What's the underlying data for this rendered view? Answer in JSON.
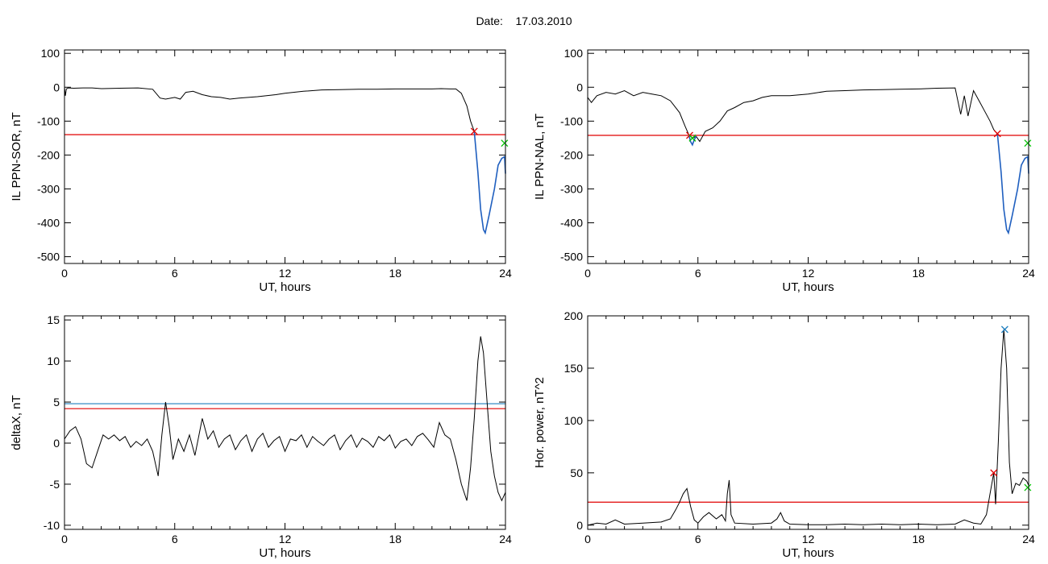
{
  "header": {
    "date_label": "Date:",
    "date_value": "17.03.2010"
  },
  "chart_data": [
    {
      "type": "line",
      "ylabel": "IL PPN-SOR, nT",
      "xlabel": "UT, hours",
      "xlim": [
        0,
        24
      ],
      "ylim": [
        -520,
        110
      ],
      "xticks": [
        0,
        6,
        12,
        18,
        24
      ],
      "yticks": [
        100,
        0,
        -100,
        -200,
        -300,
        -400,
        -500
      ],
      "series": [
        {
          "color": "#000000",
          "x": [
            0,
            0.05,
            0.1,
            0.2,
            0.5,
            1,
            1.5,
            2,
            3,
            4,
            4.8,
            5.2,
            5.5,
            6,
            6.3,
            6.6,
            7,
            7.5,
            8,
            8.5,
            9,
            9.5,
            10,
            10.5,
            11,
            11.5,
            12,
            13,
            14,
            15,
            16,
            17,
            18,
            19,
            20,
            20.5,
            21,
            21.3,
            21.6,
            21.9,
            22.1,
            22.3
          ],
          "y": [
            0,
            -25,
            -5,
            -2,
            -3,
            -2,
            -2,
            -4,
            -3,
            -2,
            -6,
            -32,
            -35,
            -30,
            -35,
            -15,
            -12,
            -22,
            -28,
            -30,
            -35,
            -32,
            -30,
            -28,
            -25,
            -22,
            -18,
            -12,
            -8,
            -7,
            -6,
            -6,
            -5,
            -5,
            -5,
            -4,
            -5,
            -5,
            -18,
            -55,
            -100,
            -130
          ]
        },
        {
          "color": "#1f5fbf",
          "x": [
            22.3,
            22.5,
            22.65,
            22.8,
            22.9,
            23.1,
            23.4,
            23.6,
            23.8,
            23.95,
            24
          ],
          "y": [
            -130,
            -250,
            -360,
            -420,
            -430,
            -380,
            -300,
            -230,
            -210,
            -205,
            -255
          ]
        }
      ],
      "hlines": [
        {
          "y": -140,
          "color": "#e00000"
        }
      ],
      "markers": [
        {
          "x": 22.3,
          "y": -130,
          "color": "#e00000"
        },
        {
          "x": 23.95,
          "y": -165,
          "color": "#00c000"
        }
      ]
    },
    {
      "type": "line",
      "ylabel": "IL PPN-NAL, nT",
      "xlabel": "UT, hours",
      "xlim": [
        0,
        24
      ],
      "ylim": [
        -520,
        110
      ],
      "xticks": [
        0,
        6,
        12,
        18,
        24
      ],
      "yticks": [
        100,
        0,
        -100,
        -200,
        -300,
        -400,
        -500
      ],
      "series": [
        {
          "color": "#000000",
          "x": [
            0,
            0.2,
            0.5,
            1,
            1.5,
            2,
            2.5,
            3,
            3.5,
            4,
            4.5,
            5,
            5.3,
            5.5,
            5.7,
            5.9,
            6.1,
            6.4,
            6.8,
            7.2,
            7.6,
            8,
            8.5,
            9,
            9.5,
            10,
            11,
            12,
            13,
            14,
            15,
            16,
            17,
            18,
            19,
            20,
            20.3,
            20.5,
            20.7,
            21,
            21.3,
            21.6,
            21.9,
            22.1,
            22.3
          ],
          "y": [
            -30,
            -45,
            -25,
            -15,
            -20,
            -10,
            -25,
            -15,
            -20,
            -25,
            -40,
            -75,
            -115,
            -140,
            -150,
            -145,
            -160,
            -130,
            -120,
            -100,
            -70,
            -60,
            -45,
            -40,
            -30,
            -25,
            -25,
            -20,
            -12,
            -10,
            -8,
            -7,
            -6,
            -5,
            -3,
            -2,
            -80,
            -25,
            -85,
            -10,
            -40,
            -70,
            -100,
            -125,
            -138
          ]
        },
        {
          "color": "#1f5fbf",
          "x": [
            5.5,
            5.6,
            5.7,
            5.8,
            5.9
          ],
          "y": [
            -140,
            -160,
            -170,
            -155,
            -145
          ]
        },
        {
          "color": "#1f5fbf",
          "x": [
            22.3,
            22.5,
            22.65,
            22.8,
            22.9,
            23.1,
            23.4,
            23.6,
            23.8,
            23.95,
            24
          ],
          "y": [
            -138,
            -250,
            -360,
            -420,
            -430,
            -380,
            -300,
            -230,
            -210,
            -205,
            -255
          ]
        }
      ],
      "hlines": [
        {
          "y": -142,
          "color": "#e00000"
        }
      ],
      "markers": [
        {
          "x": 5.55,
          "y": -142,
          "color": "#e00000"
        },
        {
          "x": 22.3,
          "y": -137,
          "color": "#e00000"
        },
        {
          "x": 5.7,
          "y": -150,
          "color": "#00c000"
        },
        {
          "x": 23.95,
          "y": -165,
          "color": "#00c000"
        }
      ]
    },
    {
      "type": "line",
      "ylabel": "deltaX, nT",
      "xlabel": "UT, hours",
      "xlim": [
        0,
        24
      ],
      "ylim": [
        -10.5,
        15.5
      ],
      "xticks": [
        0,
        6,
        12,
        18,
        24
      ],
      "yticks": [
        15,
        10,
        5,
        0,
        -5,
        -10
      ],
      "series": [
        {
          "color": "#000000",
          "x": [
            0,
            0.3,
            0.6,
            0.9,
            1.2,
            1.5,
            1.8,
            2.1,
            2.4,
            2.7,
            3,
            3.3,
            3.6,
            3.9,
            4.2,
            4.5,
            4.8,
            5.1,
            5.3,
            5.5,
            5.7,
            5.9,
            6.2,
            6.5,
            6.8,
            7.1,
            7.5,
            7.8,
            8.1,
            8.4,
            8.7,
            9,
            9.3,
            9.6,
            9.9,
            10.2,
            10.5,
            10.8,
            11.1,
            11.4,
            11.7,
            12,
            12.3,
            12.6,
            12.9,
            13.2,
            13.5,
            13.8,
            14.1,
            14.4,
            14.7,
            15,
            15.3,
            15.6,
            15.9,
            16.2,
            16.5,
            16.8,
            17.1,
            17.4,
            17.7,
            18,
            18.3,
            18.6,
            18.9,
            19.2,
            19.5,
            19.8,
            20.1,
            20.4,
            20.7,
            21,
            21.3,
            21.6,
            21.9,
            22.1,
            22.3,
            22.5,
            22.65,
            22.8,
            23,
            23.2,
            23.4,
            23.6,
            23.8,
            24
          ],
          "y": [
            0.5,
            1.5,
            2,
            0.5,
            -2.5,
            -3,
            -1,
            1,
            0.5,
            1,
            0.3,
            0.8,
            -0.5,
            0.2,
            -0.3,
            0.5,
            -1,
            -4,
            1,
            5,
            2,
            -2,
            0.5,
            -1,
            1,
            -1.5,
            3,
            0.5,
            1.5,
            -0.5,
            0.5,
            1,
            -0.8,
            0.3,
            1,
            -1,
            0.5,
            1.2,
            -0.5,
            0.3,
            0.8,
            -1,
            0.5,
            0.3,
            1,
            -0.5,
            0.8,
            0.2,
            -0.3,
            0.5,
            1,
            -0.8,
            0.3,
            1,
            -0.5,
            0.6,
            0.2,
            -0.5,
            0.8,
            0.3,
            1,
            -0.6,
            0.2,
            0.5,
            -0.3,
            0.8,
            1.2,
            0.4,
            -0.5,
            2.5,
            1,
            0.5,
            -2,
            -5,
            -7,
            -3,
            3,
            10,
            13,
            11,
            5,
            -1,
            -4,
            -6,
            -7,
            -6
          ]
        }
      ],
      "hlines": [
        {
          "y": 4.8,
          "color": "#1f7fbf"
        },
        {
          "y": 4.2,
          "color": "#e00000"
        }
      ],
      "markers": []
    },
    {
      "type": "line",
      "ylabel": "Hor. power, nT^2",
      "xlabel": "UT, hours",
      "xlim": [
        0,
        24
      ],
      "ylim": [
        -4,
        200
      ],
      "xticks": [
        0,
        6,
        12,
        18,
        24
      ],
      "yticks": [
        200,
        150,
        100,
        50,
        0
      ],
      "series": [
        {
          "color": "#000000",
          "x": [
            0,
            0.5,
            1,
            1.5,
            2,
            3,
            4,
            4.5,
            4.8,
            5,
            5.2,
            5.4,
            5.6,
            5.8,
            6,
            6.3,
            6.6,
            7,
            7.3,
            7.5,
            7.6,
            7.7,
            7.8,
            8,
            9,
            10,
            10.3,
            10.5,
            10.7,
            11,
            12,
            13,
            14,
            15,
            16,
            17,
            18,
            19,
            20,
            20.5,
            21,
            21.4,
            21.7,
            21.9,
            22.1,
            22.2,
            22.35,
            22.5,
            22.65,
            22.8,
            22.95,
            23.1,
            23.3,
            23.5,
            23.7,
            23.9,
            24
          ],
          "y": [
            0,
            2,
            1,
            5,
            1,
            2,
            3,
            6,
            15,
            22,
            30,
            35,
            18,
            5,
            2,
            8,
            12,
            6,
            10,
            4,
            30,
            43,
            10,
            2,
            1,
            2,
            6,
            12,
            4,
            1,
            0.5,
            0.5,
            1,
            0.5,
            1,
            0.5,
            1,
            0.5,
            1,
            5,
            2,
            1,
            10,
            30,
            50,
            20,
            80,
            150,
            187,
            150,
            60,
            30,
            40,
            38,
            45,
            42,
            38
          ]
        }
      ],
      "hlines": [
        {
          "y": 22,
          "color": "#e00000"
        }
      ],
      "markers": [
        {
          "x": 22.1,
          "y": 50,
          "color": "#e00000"
        },
        {
          "x": 22.7,
          "y": 187,
          "color": "#1f7fbf"
        },
        {
          "x": 23.95,
          "y": 36,
          "color": "#00c000"
        }
      ]
    }
  ]
}
